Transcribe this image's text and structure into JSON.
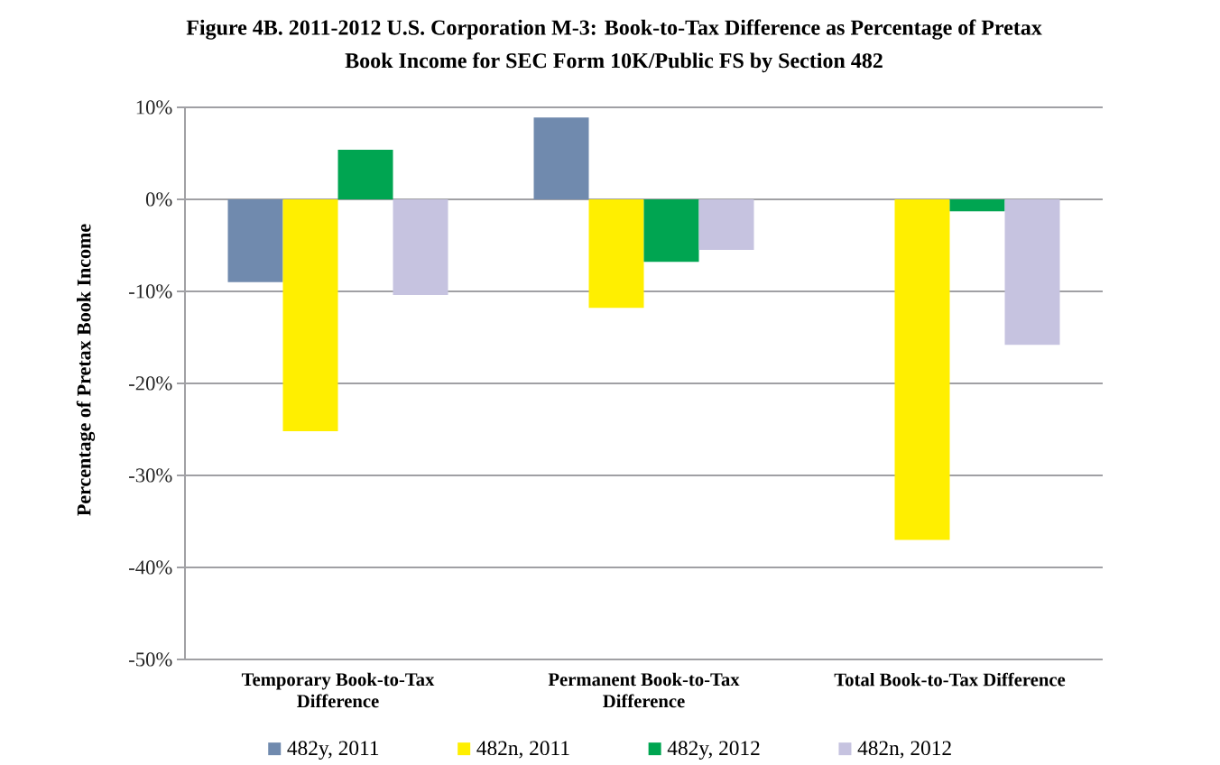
{
  "chart_data": {
    "type": "bar",
    "title": "Figure 4B. 2011-2012 U.S. Corporation M-3: Book-to-Tax Difference as Percentage of Pretax Book Income for SEC Form 10K/Public FS by Section 482",
    "ylabel": "Percentage of Pretax Book Income",
    "categories": [
      "Temporary Book-to-Tax Difference",
      "Permanent Book-to-Tax Difference",
      "Total Book-to-Tax Difference"
    ],
    "series": [
      {
        "name": "482y, 2011",
        "color": "#708aae",
        "values": [
          -9.0,
          8.9,
          null
        ]
      },
      {
        "name": "482n, 2011",
        "color": "#ffef00",
        "values": [
          -25.2,
          -11.8,
          -37.0
        ]
      },
      {
        "name": "482y, 2012",
        "color": "#00a551",
        "values": [
          5.4,
          -6.8,
          -1.3
        ]
      },
      {
        "name": "482n, 2012",
        "color": "#c6c3e0",
        "values": [
          -10.4,
          -5.5,
          -15.8
        ]
      }
    ],
    "ylim": [
      -50,
      10
    ],
    "yticks": [
      {
        "value": -50,
        "label": "-50%"
      },
      {
        "value": -40,
        "label": "-40%"
      },
      {
        "value": -30,
        "label": "-30%"
      },
      {
        "value": -20,
        "label": "-20%"
      },
      {
        "value": -10,
        "label": "-10%"
      },
      {
        "value": 0,
        "label": "0%"
      },
      {
        "value": 10,
        "label": "10%"
      }
    ],
    "grid": "y",
    "legend": "bottom"
  }
}
